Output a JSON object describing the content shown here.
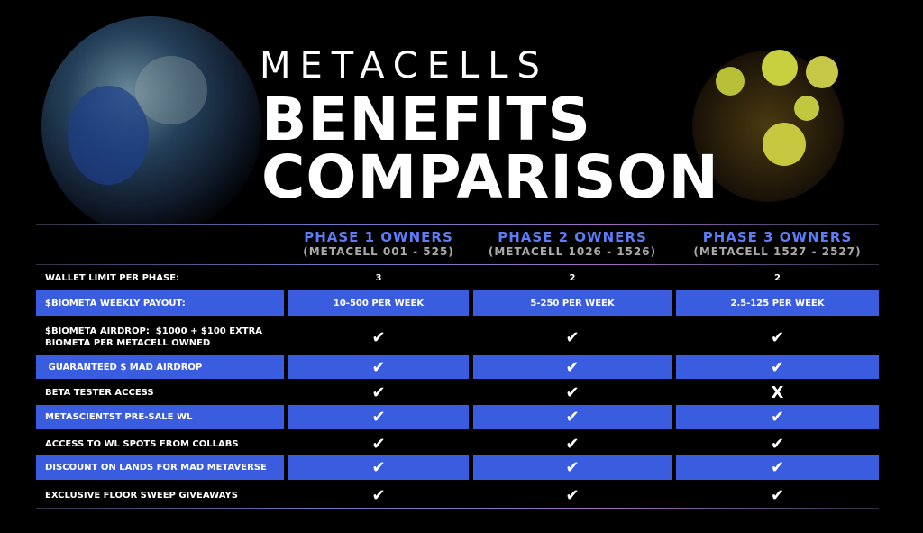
{
  "header": {
    "brand": "METACELLS",
    "title": [
      "BENEFITS",
      "COMPARISON"
    ]
  },
  "table": {
    "columns": [
      {
        "name": "PHASE 1 OWNERS",
        "range": "(METACELL 001 - 525)"
      },
      {
        "name": "PHASE 2 OWNERS",
        "range": "(METACELL 1026 - 1526)"
      },
      {
        "name": "PHASE 3 OWNERS",
        "range": "(METACELL 1527 - 2527)"
      }
    ],
    "rows": [
      [
        "WALLET LIMIT PER PHASE:",
        "3",
        "2",
        "2"
      ],
      [
        "$BIOMETA WEEKLY PAYOUT:",
        "10-500 PER WEEK",
        "5-250 PER WEEK",
        "2.5-125 PER WEEK"
      ],
      [
        "$BIOMETA AIRDROP:  $1000 + $100 EXTRA BIOMETA PER METACELL OWNED",
        "✔",
        "✔",
        "✔"
      ],
      [
        " GUARANTEED $ MAD AIRDROP",
        "✔",
        "✔",
        "✔"
      ],
      [
        "BETA TESTER ACCESS",
        "✔",
        "✔",
        "X"
      ],
      [
        "METASCIENTST PRE-SALE WL",
        "✔",
        "✔",
        "✔"
      ],
      [
        "ACCESS TO WL SPOTS FROM COLLABS",
        "✔",
        "✔",
        "✔"
      ],
      [
        "DISCOUNT ON LANDS FOR MAD METAVERSE",
        "✔",
        "✔",
        "✔"
      ],
      [
        "EXCLUSIVE FLOOR SWEEP GIVEAWAYS",
        "✔",
        "✔",
        "✔"
      ]
    ]
  }
}
